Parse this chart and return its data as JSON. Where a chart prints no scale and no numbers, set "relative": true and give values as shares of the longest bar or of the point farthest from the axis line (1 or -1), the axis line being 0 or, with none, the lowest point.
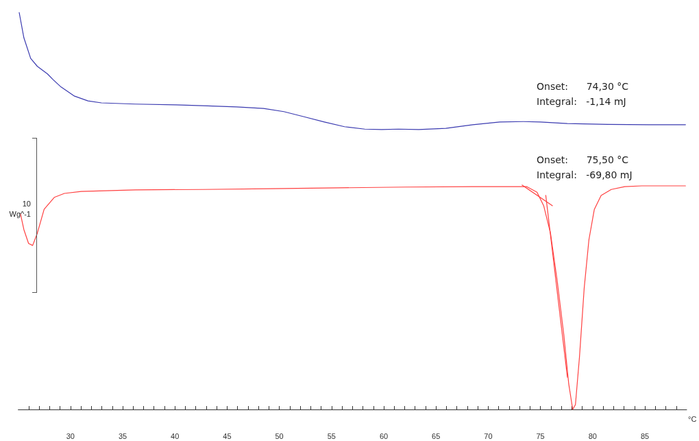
{
  "chart_data": {
    "type": "line",
    "relative": true,
    "xlabel": "°C",
    "xlim": [
      25,
      89
    ],
    "xticks": [
      {
        "value": 26,
        "label": null
      },
      {
        "value": 27,
        "label": null
      },
      {
        "value": 28,
        "label": null
      },
      {
        "value": 29,
        "label": null
      },
      30,
      {
        "value": 31,
        "label": null
      },
      {
        "value": 32,
        "label": null
      },
      {
        "value": 33,
        "label": null
      },
      {
        "value": 34,
        "label": null
      },
      35,
      {
        "value": 36,
        "label": null
      },
      {
        "value": 37,
        "label": null
      },
      {
        "value": 38,
        "label": null
      },
      {
        "value": 39,
        "label": null
      },
      40,
      {
        "value": 41,
        "label": null
      },
      {
        "value": 42,
        "label": null
      },
      {
        "value": 43,
        "label": null
      },
      {
        "value": 44,
        "label": null
      },
      45,
      {
        "value": 46,
        "label": null
      },
      {
        "value": 47,
        "label": null
      },
      {
        "value": 48,
        "label": null
      },
      {
        "value": 49,
        "label": null
      },
      50,
      {
        "value": 51,
        "label": null
      },
      {
        "value": 52,
        "label": null
      },
      {
        "value": 53,
        "label": null
      },
      {
        "value": 54,
        "label": null
      },
      55,
      {
        "value": 56,
        "label": null
      },
      {
        "value": 57,
        "label": null
      },
      {
        "value": 58,
        "label": null
      },
      {
        "value": 59,
        "label": null
      },
      60,
      {
        "value": 61,
        "label": null
      },
      {
        "value": 62,
        "label": null
      },
      {
        "value": 63,
        "label": null
      },
      {
        "value": 64,
        "label": null
      },
      65,
      {
        "value": 66,
        "label": null
      },
      {
        "value": 67,
        "label": null
      },
      {
        "value": 68,
        "label": null
      },
      {
        "value": 69,
        "label": null
      },
      70,
      {
        "value": 71,
        "label": null
      },
      {
        "value": 72,
        "label": null
      },
      {
        "value": 73,
        "label": null
      },
      {
        "value": 74,
        "label": null
      },
      75,
      {
        "value": 76,
        "label": null
      },
      {
        "value": 77,
        "label": null
      },
      {
        "value": 78,
        "label": null
      },
      {
        "value": 79,
        "label": null
      },
      80,
      {
        "value": 81,
        "label": null
      },
      {
        "value": 82,
        "label": null
      },
      {
        "value": 83,
        "label": null
      },
      {
        "value": 84,
        "label": null
      },
      85,
      {
        "value": 86,
        "label": null
      },
      {
        "value": 87,
        "label": null
      },
      {
        "value": 88,
        "label": null
      }
    ],
    "grid": false,
    "marker": "none",
    "line_style": "solid",
    "series": [
      {
        "color": "#3a3ab0",
        "x": [
          25.09,
          25.54,
          26.19,
          26.83,
          27.8,
          28.32,
          29.1,
          30.39,
          31.68,
          32.97,
          36.21,
          40.08,
          42.67,
          45.9,
          48.49,
          50.43,
          52.37,
          54.31,
          56.24,
          58.18,
          59.8,
          61.41,
          63.35,
          65.94,
          68.52,
          71.11,
          73.37,
          74.99,
          77.57,
          81.45,
          85.33,
          88.89
        ],
        "values": [
          1,
          0.936,
          0.884,
          0.864,
          0.845,
          0.831,
          0.812,
          0.789,
          0.777,
          0.772,
          0.769,
          0.767,
          0.765,
          0.762,
          0.758,
          0.75,
          0.737,
          0.724,
          0.712,
          0.706,
          0.705,
          0.706,
          0.705,
          0.708,
          0.717,
          0.724,
          0.725,
          0.724,
          0.72,
          0.718,
          0.717,
          0.717
        ]
      },
      {
        "color": "#ff4040",
        "x": [
          25.22,
          25.54,
          25.99,
          26.38,
          26.83,
          27.48,
          28.45,
          29.42,
          31.03,
          36.21,
          42.67,
          49.13,
          55.6,
          62.06,
          68.53,
          73.7,
          74.67,
          75.31,
          75.96,
          76.61,
          77.25,
          77.71,
          78.09,
          78.35,
          78.74,
          79.19,
          79.64,
          80.16,
          80.81,
          81.78,
          83.07,
          84.69,
          88.89
        ],
        "values": [
          0.492,
          0.453,
          0.418,
          0.413,
          0.444,
          0.504,
          0.534,
          0.544,
          0.549,
          0.553,
          0.554,
          0.556,
          0.558,
          0.56,
          0.561,
          0.561,
          0.547,
          0.513,
          0.444,
          0.323,
          0.185,
          0.064,
          0,
          0.012,
          0.133,
          0.306,
          0.427,
          0.504,
          0.539,
          0.554,
          0.561,
          0.563,
          0.563
        ]
      },
      {
        "color": "#ff4040",
        "x": [
          73.24,
          76.15
        ],
        "values": [
          0.565,
          0.513
        ]
      },
      {
        "color": "#ff4040",
        "x": [
          75.51,
          77.58
        ],
        "values": [
          0.539,
          0.081
        ]
      }
    ],
    "annotations": [
      "Onset:      74,30 °C\nIntegral:   -1,14 mJ",
      "Onset:      75,50 °C\nIntegral:   -69,80 mJ",
      "10",
      "Wg^-1"
    ]
  }
}
